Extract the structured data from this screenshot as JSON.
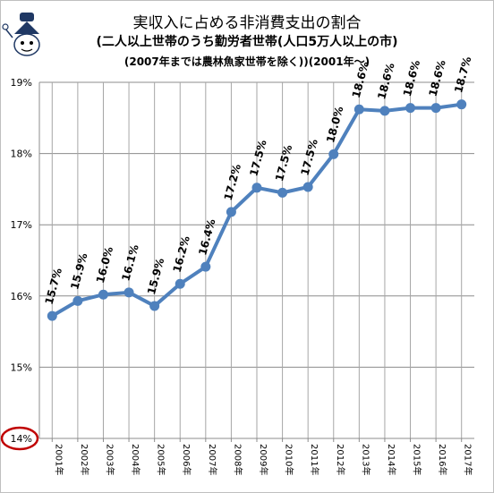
{
  "chart_data": {
    "type": "line",
    "title": "実収入に占める非消費支出の割合",
    "subtitle": [
      "(二人以上世帯のうち勤労者世帯(人口5万人以上の市)",
      "(2007年までは農林魚家世帯を除く))(2001年～)"
    ],
    "x": [
      "2001年",
      "2002年",
      "2003年",
      "2004年",
      "2005年",
      "2006年",
      "2007年",
      "2008年",
      "2009年",
      "2010年",
      "2011年",
      "2012年",
      "2013年",
      "2014年",
      "2015年",
      "2016年",
      "2017年"
    ],
    "values": [
      15.72,
      15.93,
      16.02,
      16.05,
      15.86,
      16.17,
      16.41,
      17.18,
      17.52,
      17.45,
      17.53,
      17.99,
      18.62,
      18.6,
      18.64,
      18.64,
      18.69
    ],
    "data_labels": [
      "15.7%",
      "15.9%",
      "16.0%",
      "16.1%",
      "15.9%",
      "16.2%",
      "16.4%",
      "17.2%",
      "17.5%",
      "17.5%",
      "17.5%",
      "18.0%",
      "18.6%",
      "18.6%",
      "18.6%",
      "18.6%",
      "18.7%"
    ],
    "y_ticks": [
      "14%",
      "15%",
      "16%",
      "17%",
      "18%",
      "19%"
    ],
    "ylim": [
      14,
      19
    ],
    "grid": true,
    "colors": {
      "line": "#4f81bd",
      "grid": "#8c8c8c",
      "highlight": "#c00000"
    },
    "highlighted_tick": "14%"
  },
  "icons": [
    "mascot-icon"
  ]
}
